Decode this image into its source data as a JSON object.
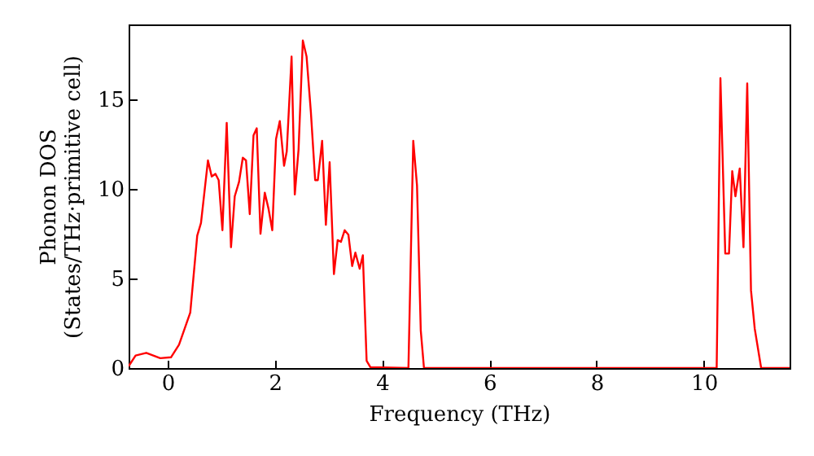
{
  "chart_data": {
    "type": "line",
    "xlabel": "Frequency (THz)",
    "ylabel": "Phonon DOS\n(States/THz·primitive cell)",
    "xlim": [
      -0.73,
      11.6
    ],
    "ylim": [
      0,
      19.2
    ],
    "xticks": [
      0,
      2,
      4,
      6,
      8,
      10
    ],
    "yticks": [
      0,
      5,
      10,
      15
    ],
    "grid": false,
    "marker": "none",
    "line_style": "solid",
    "series": [
      {
        "color": "#ff0000",
        "x": [
          -0.73,
          -0.6,
          -0.4,
          -0.14,
          0.06,
          0.21,
          0.42,
          0.55,
          0.62,
          0.75,
          0.82,
          0.89,
          0.95,
          1.02,
          1.1,
          1.18,
          1.25,
          1.33,
          1.4,
          1.46,
          1.53,
          1.6,
          1.66,
          1.73,
          1.81,
          1.88,
          1.95,
          2.02,
          2.09,
          2.17,
          2.22,
          2.31,
          2.37,
          2.44,
          2.52,
          2.59,
          2.67,
          2.75,
          2.8,
          2.88,
          2.95,
          3.02,
          3.1,
          3.17,
          3.23,
          3.3,
          3.37,
          3.44,
          3.5,
          3.58,
          3.64,
          3.71,
          3.78,
          4.49,
          4.58,
          4.65,
          4.72,
          4.78,
          10.24,
          10.31,
          10.4,
          10.47,
          10.53,
          10.59,
          10.67,
          10.74,
          10.81,
          10.88,
          10.95,
          11.07,
          11.6
        ],
        "values": [
          0.1,
          0.7,
          0.85,
          0.55,
          0.6,
          1.3,
          3.1,
          7.4,
          8.1,
          11.6,
          10.7,
          10.85,
          10.5,
          7.7,
          13.7,
          6.75,
          9.6,
          10.4,
          11.75,
          11.6,
          8.6,
          13.0,
          13.4,
          7.5,
          9.8,
          8.9,
          7.7,
          12.8,
          13.8,
          11.3,
          12.1,
          17.4,
          9.7,
          12.2,
          18.3,
          17.4,
          14.3,
          10.5,
          10.5,
          12.7,
          8.0,
          11.5,
          5.25,
          7.15,
          7.05,
          7.7,
          7.45,
          5.7,
          6.45,
          5.55,
          6.3,
          0.4,
          0.05,
          0,
          12.7,
          10.2,
          2.1,
          0,
          0,
          16.2,
          6.4,
          6.4,
          11.0,
          9.6,
          11.15,
          6.75,
          15.9,
          4.35,
          2.2,
          0,
          0
        ]
      }
    ]
  }
}
